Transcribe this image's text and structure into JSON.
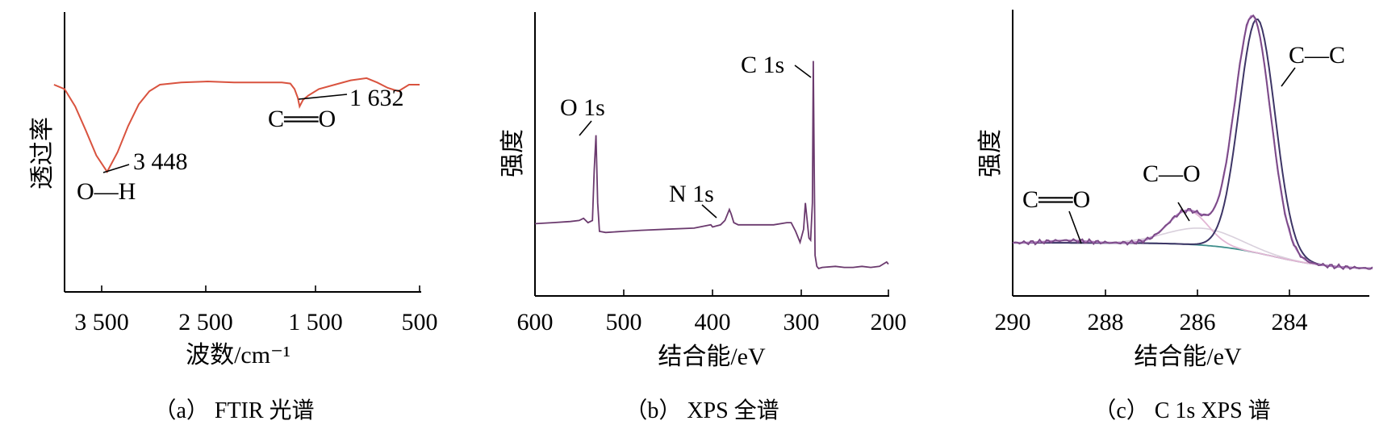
{
  "colors": {
    "ftir": "#d9533f",
    "xps_survey": "#6b3a6e",
    "c1s_envelope": "#7a4a86",
    "c1s_fit": "#b07bc0",
    "c1s_cc": "#3d3566",
    "c1s_co": "#e2b6d4",
    "c1s_coo": "#d9d0dc",
    "c1s_baseline": "#3f8f8c"
  },
  "chart_data": [
    {
      "type": "line",
      "caption": "（a） FTIR 光谱",
      "xlabel": "波数/cm⁻¹",
      "ylabel": "透过率",
      "xlim": [
        4000,
        500
      ],
      "xticks": [
        3500,
        2500,
        1500,
        500
      ],
      "xtick_labels": [
        "3 500",
        "2 500",
        "1 500",
        "500"
      ],
      "y_ticks_shown": false,
      "series": [
        {
          "x": [
            3950,
            3850,
            3750,
            3650,
            3550,
            3448,
            3350,
            3250,
            3150,
            3050,
            2950,
            2850,
            2750,
            2500,
            2250,
            2000,
            1800,
            1720,
            1680,
            1650,
            1632,
            1600,
            1550,
            1450,
            1300,
            1150,
            1000,
            900,
            800,
            700,
            600,
            500
          ],
          "y": [
            0.8,
            0.76,
            0.6,
            0.38,
            0.15,
            0.0,
            0.18,
            0.42,
            0.62,
            0.74,
            0.8,
            0.81,
            0.82,
            0.83,
            0.82,
            0.82,
            0.82,
            0.81,
            0.76,
            0.68,
            0.6,
            0.66,
            0.7,
            0.76,
            0.8,
            0.84,
            0.86,
            0.82,
            0.77,
            0.74,
            0.8,
            0.8
          ]
        }
      ],
      "annotations": [
        {
          "label": "3 448",
          "x": 3448
        },
        {
          "label": "O—H",
          "x": 3448
        },
        {
          "label": "1 632",
          "x": 1632
        },
        {
          "label": "C══O",
          "x": 1632
        }
      ]
    },
    {
      "type": "line",
      "caption": "（b） XPS 全谱",
      "xlabel": "结合能/eV",
      "ylabel": "强度",
      "xlim": [
        600,
        200
      ],
      "xticks": [
        600,
        500,
        400,
        300,
        200
      ],
      "xtick_labels": [
        "600",
        "500",
        "400",
        "300",
        "200"
      ],
      "y_ticks_shown": false,
      "series": [
        {
          "x": [
            600,
            580,
            560,
            550,
            545,
            540,
            535,
            533,
            531,
            529,
            527,
            520,
            500,
            480,
            450,
            420,
            401,
            399,
            390,
            385,
            380,
            378,
            375,
            370,
            360,
            350,
            330,
            315,
            310,
            305,
            300,
            296,
            294,
            292,
            290,
            288,
            286,
            285,
            284,
            283,
            281,
            279,
            275,
            260,
            250,
            240,
            230,
            220,
            210,
            202,
            200
          ],
          "y": [
            0.205,
            0.21,
            0.215,
            0.22,
            0.23,
            0.21,
            0.22,
            0.45,
            0.61,
            0.3,
            0.17,
            0.165,
            0.17,
            0.175,
            0.18,
            0.185,
            0.2,
            0.19,
            0.2,
            0.22,
            0.27,
            0.25,
            0.21,
            0.2,
            0.2,
            0.2,
            0.2,
            0.21,
            0.21,
            0.17,
            0.12,
            0.18,
            0.3,
            0.22,
            0.14,
            0.13,
            0.3,
            0.95,
            0.48,
            0.06,
            0.01,
            0.0,
            0.005,
            0.01,
            0.005,
            0.005,
            0.01,
            0.005,
            0.01,
            0.03,
            0.02
          ]
        }
      ],
      "annotations": [
        {
          "label": "O 1s",
          "x": 531
        },
        {
          "label": "N 1s",
          "x": 399
        },
        {
          "label": "C 1s",
          "x": 285
        }
      ]
    },
    {
      "type": "line",
      "caption": "（c） C 1s XPS 谱",
      "xlabel": "结合能/eV",
      "ylabel": "强度",
      "xlim": [
        290,
        282.2
      ],
      "xticks": [
        290,
        288,
        286,
        284
      ],
      "xtick_labels": [
        "290",
        "288",
        "286",
        "284"
      ],
      "y_ticks_shown": false,
      "baseline_start": 0.11,
      "baseline_end": 0.0,
      "peaks": [
        {
          "label": "C—C",
          "center": 284.8,
          "height": 0.98,
          "width": 0.55
        },
        {
          "label": "C—O",
          "center": 286.2,
          "height": 0.14,
          "width": 0.6
        },
        {
          "label": "C══O",
          "center": 288.8,
          "height": 0.01,
          "width": 0.6
        }
      ],
      "annotations": [
        {
          "label": "C—C",
          "x": 284.5
        },
        {
          "label": "C—O",
          "x": 286.3
        },
        {
          "label": "C══O",
          "x": 288.8
        }
      ]
    }
  ]
}
